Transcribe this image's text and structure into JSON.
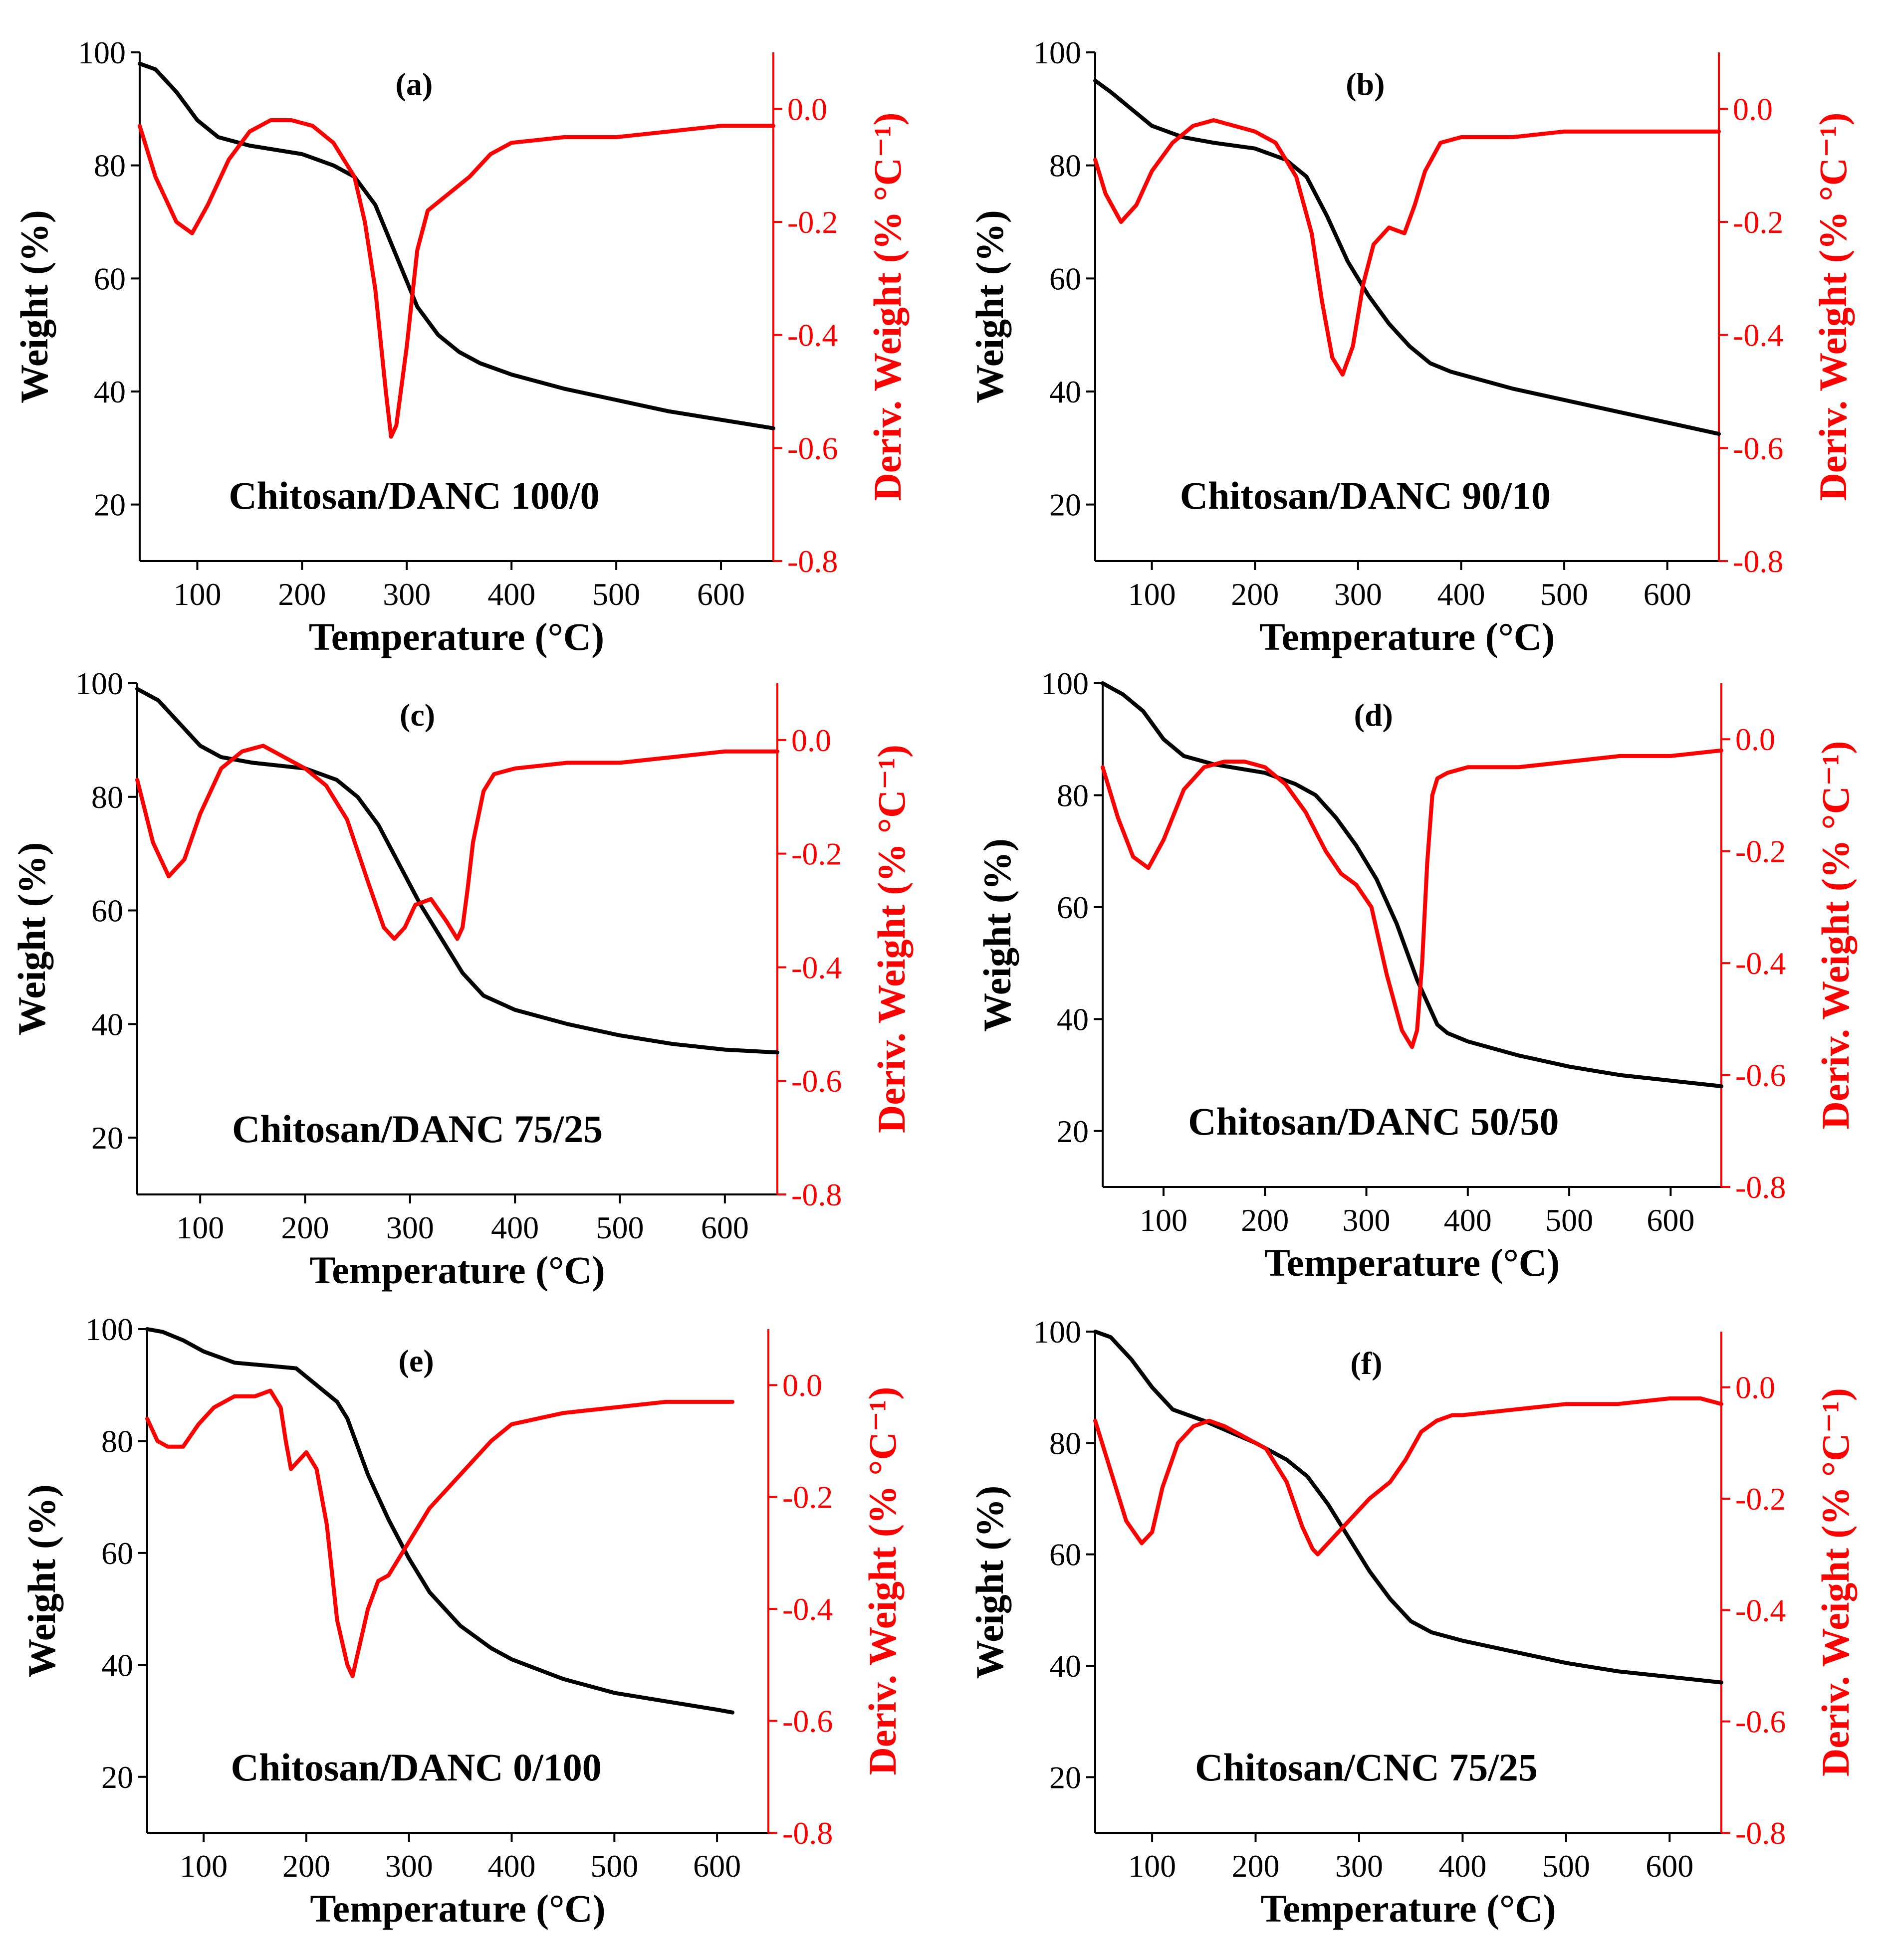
{
  "colors": {
    "weight": "#000000",
    "deriv": "#ff0000",
    "axis_left": "#000000",
    "axis_right": "#ff0000"
  },
  "chart_data": [
    {
      "type": "line",
      "panel": "(a)",
      "title": "Chitosan/DANC 100/0",
      "xlabel": "Temperature (°C)",
      "ylabel": "Weight (%)",
      "y2label": "Deriv. Weight (% °C⁻¹)",
      "xlim": [
        45,
        650
      ],
      "ylim": [
        10,
        100
      ],
      "y2lim": [
        -0.8,
        0.1
      ],
      "xticks": [
        100,
        200,
        300,
        400,
        500,
        600
      ],
      "yticks": [
        20,
        40,
        60,
        80,
        100
      ],
      "y2ticks": [
        0.0,
        -0.2,
        -0.4,
        -0.6,
        -0.8
      ],
      "series": [
        {
          "name": "Weight",
          "axis": "left",
          "x": [
            45,
            60,
            80,
            100,
            120,
            150,
            200,
            230,
            250,
            270,
            290,
            310,
            330,
            350,
            370,
            400,
            450,
            500,
            550,
            600,
            650
          ],
          "values": [
            98,
            97,
            93,
            88,
            85,
            83.5,
            82,
            80,
            78,
            73,
            64,
            55,
            50,
            47,
            45,
            43,
            40.5,
            38.5,
            36.5,
            35,
            33.5
          ]
        },
        {
          "name": "Deriv. Weight",
          "axis": "right",
          "x": [
            45,
            60,
            80,
            95,
            110,
            130,
            150,
            170,
            190,
            210,
            230,
            250,
            260,
            270,
            280,
            285,
            290,
            300,
            310,
            320,
            340,
            360,
            380,
            400,
            450,
            500,
            550,
            600,
            650
          ],
          "values": [
            -0.03,
            -0.12,
            -0.2,
            -0.22,
            -0.17,
            -0.09,
            -0.04,
            -0.02,
            -0.02,
            -0.03,
            -0.06,
            -0.12,
            -0.2,
            -0.32,
            -0.5,
            -0.58,
            -0.56,
            -0.42,
            -0.25,
            -0.18,
            -0.15,
            -0.12,
            -0.08,
            -0.06,
            -0.05,
            -0.05,
            -0.04,
            -0.03,
            -0.03
          ]
        }
      ]
    },
    {
      "type": "line",
      "panel": "(b)",
      "title": "Chitosan/DANC 90/10",
      "xlabel": "Temperature (°C)",
      "ylabel": "Weight (%)",
      "y2label": "Deriv. Weight (% °C⁻¹)",
      "xlim": [
        45,
        650
      ],
      "ylim": [
        10,
        100
      ],
      "y2lim": [
        -0.8,
        0.1
      ],
      "xticks": [
        100,
        200,
        300,
        400,
        500,
        600
      ],
      "yticks": [
        20,
        40,
        60,
        80,
        100
      ],
      "y2ticks": [
        0.0,
        -0.2,
        -0.4,
        -0.6,
        -0.8
      ],
      "series": [
        {
          "name": "Weight",
          "axis": "left",
          "x": [
            45,
            60,
            80,
            100,
            130,
            160,
            200,
            230,
            250,
            270,
            290,
            310,
            330,
            350,
            370,
            390,
            420,
            450,
            500,
            550,
            600,
            650
          ],
          "values": [
            95,
            93,
            90,
            87,
            85,
            84,
            83,
            81,
            78,
            71,
            63,
            57,
            52,
            48,
            45,
            43.5,
            42,
            40.5,
            38.5,
            36.5,
            34.5,
            32.5
          ]
        },
        {
          "name": "Deriv. Weight",
          "axis": "right",
          "x": [
            45,
            55,
            70,
            85,
            100,
            120,
            140,
            160,
            180,
            200,
            220,
            240,
            255,
            265,
            275,
            285,
            295,
            305,
            315,
            330,
            345,
            355,
            365,
            380,
            400,
            450,
            500,
            550,
            600,
            650
          ],
          "values": [
            -0.09,
            -0.15,
            -0.2,
            -0.17,
            -0.11,
            -0.06,
            -0.03,
            -0.02,
            -0.03,
            -0.04,
            -0.06,
            -0.12,
            -0.22,
            -0.34,
            -0.44,
            -0.47,
            -0.42,
            -0.31,
            -0.24,
            -0.21,
            -0.22,
            -0.17,
            -0.11,
            -0.06,
            -0.05,
            -0.05,
            -0.04,
            -0.04,
            -0.04,
            -0.04
          ]
        }
      ]
    },
    {
      "type": "line",
      "panel": "(c)",
      "title": "Chitosan/DANC 75/25",
      "xlabel": "Temperature (°C)",
      "ylabel": "Weight (%)",
      "y2label": "Deriv. Weight (% °C⁻¹)",
      "xlim": [
        40,
        650
      ],
      "ylim": [
        10,
        100
      ],
      "y2lim": [
        -0.8,
        0.1
      ],
      "xticks": [
        100,
        200,
        300,
        400,
        500,
        600
      ],
      "yticks": [
        20,
        40,
        60,
        80,
        100
      ],
      "y2ticks": [
        0.0,
        -0.2,
        -0.4,
        -0.6,
        -0.8
      ],
      "series": [
        {
          "name": "Weight",
          "axis": "left",
          "x": [
            40,
            60,
            80,
            100,
            120,
            150,
            200,
            230,
            250,
            270,
            290,
            310,
            330,
            350,
            370,
            400,
            450,
            500,
            550,
            600,
            650
          ],
          "values": [
            99,
            97,
            93,
            89,
            87,
            86,
            85,
            83,
            80,
            75,
            68,
            61,
            55,
            49,
            45,
            42.5,
            40,
            38,
            36.5,
            35.5,
            35
          ]
        },
        {
          "name": "Deriv. Weight",
          "axis": "right",
          "x": [
            40,
            55,
            70,
            85,
            100,
            120,
            140,
            160,
            180,
            200,
            220,
            240,
            260,
            275,
            285,
            295,
            305,
            320,
            335,
            345,
            350,
            355,
            360,
            370,
            380,
            400,
            450,
            500,
            550,
            600,
            650
          ],
          "values": [
            -0.07,
            -0.18,
            -0.24,
            -0.21,
            -0.13,
            -0.05,
            -0.02,
            -0.01,
            -0.03,
            -0.05,
            -0.08,
            -0.14,
            -0.25,
            -0.33,
            -0.35,
            -0.33,
            -0.29,
            -0.28,
            -0.32,
            -0.35,
            -0.33,
            -0.26,
            -0.18,
            -0.09,
            -0.06,
            -0.05,
            -0.04,
            -0.04,
            -0.03,
            -0.02,
            -0.02
          ]
        }
      ]
    },
    {
      "type": "line",
      "panel": "(d)",
      "title": "Chitosan/DANC 50/50",
      "xlabel": "Temperature (°C)",
      "ylabel": "Weight (%)",
      "y2label": "Deriv. Weight (% °C⁻¹)",
      "xlim": [
        40,
        650
      ],
      "ylim": [
        10,
        100
      ],
      "y2lim": [
        -0.8,
        0.1
      ],
      "xticks": [
        100,
        200,
        300,
        400,
        500,
        600
      ],
      "yticks": [
        20,
        40,
        60,
        80,
        100
      ],
      "y2ticks": [
        0.0,
        -0.2,
        -0.4,
        -0.6,
        -0.8
      ],
      "series": [
        {
          "name": "Weight",
          "axis": "left",
          "x": [
            40,
            60,
            80,
            100,
            120,
            150,
            200,
            230,
            250,
            270,
            290,
            310,
            330,
            350,
            370,
            380,
            400,
            450,
            500,
            550,
            600,
            650
          ],
          "values": [
            100,
            98,
            95,
            90,
            87,
            85.5,
            84,
            82,
            80,
            76,
            71,
            65,
            57,
            47,
            39,
            37.5,
            36,
            33.5,
            31.5,
            30,
            29,
            28
          ]
        },
        {
          "name": "Deriv. Weight",
          "axis": "right",
          "x": [
            40,
            55,
            70,
            85,
            100,
            120,
            140,
            160,
            180,
            200,
            220,
            240,
            260,
            275,
            290,
            305,
            320,
            335,
            345,
            350,
            355,
            360,
            365,
            370,
            380,
            400,
            450,
            500,
            550,
            600,
            650
          ],
          "values": [
            -0.05,
            -0.14,
            -0.21,
            -0.23,
            -0.18,
            -0.09,
            -0.05,
            -0.04,
            -0.04,
            -0.05,
            -0.08,
            -0.13,
            -0.2,
            -0.24,
            -0.26,
            -0.3,
            -0.42,
            -0.52,
            -0.55,
            -0.52,
            -0.4,
            -0.22,
            -0.1,
            -0.07,
            -0.06,
            -0.05,
            -0.05,
            -0.04,
            -0.03,
            -0.03,
            -0.02
          ]
        }
      ]
    },
    {
      "type": "line",
      "panel": "(e)",
      "title": "Chitosan/DANC 0/100",
      "xlabel": "Temperature (°C)",
      "ylabel": "Weight (%)",
      "y2label": "Deriv. Weight (% °C⁻¹)",
      "xlim": [
        45,
        650
      ],
      "ylim": [
        10,
        100
      ],
      "y2lim": [
        -0.8,
        0.1
      ],
      "xticks": [
        100,
        200,
        300,
        400,
        500,
        600
      ],
      "yticks": [
        20,
        40,
        60,
        80,
        100
      ],
      "y2ticks": [
        0.0,
        -0.2,
        -0.4,
        -0.6,
        -0.8
      ],
      "series": [
        {
          "name": "Weight",
          "axis": "left",
          "x": [
            45,
            60,
            80,
            100,
            130,
            160,
            190,
            210,
            230,
            240,
            250,
            260,
            280,
            300,
            320,
            350,
            380,
            400,
            450,
            500,
            550,
            600,
            615
          ],
          "values": [
            100,
            99.5,
            98,
            96,
            94,
            93.5,
            93,
            90,
            87,
            84,
            79,
            74,
            66,
            59,
            53,
            47,
            43,
            41,
            37.5,
            35,
            33.5,
            32,
            31.5
          ]
        },
        {
          "name": "Deriv. Weight",
          "axis": "right",
          "x": [
            45,
            55,
            65,
            80,
            95,
            110,
            130,
            150,
            165,
            175,
            180,
            185,
            190,
            200,
            210,
            220,
            230,
            240,
            245,
            250,
            260,
            270,
            280,
            290,
            300,
            320,
            340,
            360,
            380,
            400,
            450,
            500,
            550,
            600,
            615
          ],
          "values": [
            -0.06,
            -0.1,
            -0.11,
            -0.11,
            -0.07,
            -0.04,
            -0.02,
            -0.02,
            -0.01,
            -0.04,
            -0.1,
            -0.15,
            -0.14,
            -0.12,
            -0.15,
            -0.25,
            -0.42,
            -0.5,
            -0.52,
            -0.48,
            -0.4,
            -0.35,
            -0.34,
            -0.31,
            -0.28,
            -0.22,
            -0.18,
            -0.14,
            -0.1,
            -0.07,
            -0.05,
            -0.04,
            -0.03,
            -0.03,
            -0.03
          ]
        }
      ]
    },
    {
      "type": "line",
      "panel": "(f)",
      "title": "Chitosan/CNC 75/25",
      "xlabel": "Temperature (°C)",
      "ylabel": "Weight (%)",
      "y2label": "Deriv. Weight (% °C⁻¹)",
      "xlim": [
        45,
        650
      ],
      "ylim": [
        10,
        100
      ],
      "y2lim": [
        -0.8,
        0.1
      ],
      "xticks": [
        100,
        200,
        300,
        400,
        500,
        600
      ],
      "yticks": [
        20,
        40,
        60,
        80,
        100
      ],
      "y2ticks": [
        0.0,
        -0.2,
        -0.4,
        -0.6,
        -0.8
      ],
      "series": [
        {
          "name": "Weight",
          "axis": "left",
          "x": [
            45,
            60,
            80,
            100,
            120,
            150,
            200,
            230,
            250,
            270,
            290,
            310,
            330,
            350,
            370,
            400,
            450,
            500,
            550,
            600,
            650
          ],
          "values": [
            100,
            99,
            95,
            90,
            86,
            84,
            80,
            77,
            74,
            69,
            63,
            57,
            52,
            48,
            46,
            44.5,
            42.5,
            40.5,
            39,
            38,
            37
          ]
        },
        {
          "name": "Deriv. Weight",
          "axis": "right",
          "x": [
            45,
            60,
            75,
            90,
            100,
            110,
            125,
            140,
            155,
            170,
            190,
            210,
            230,
            245,
            255,
            260,
            265,
            275,
            290,
            310,
            330,
            345,
            360,
            375,
            390,
            400,
            450,
            500,
            550,
            600,
            630,
            650
          ],
          "values": [
            -0.06,
            -0.15,
            -0.24,
            -0.28,
            -0.26,
            -0.18,
            -0.1,
            -0.07,
            -0.06,
            -0.07,
            -0.09,
            -0.11,
            -0.17,
            -0.25,
            -0.29,
            -0.3,
            -0.29,
            -0.27,
            -0.24,
            -0.2,
            -0.17,
            -0.13,
            -0.08,
            -0.06,
            -0.05,
            -0.05,
            -0.04,
            -0.03,
            -0.03,
            -0.02,
            -0.02,
            -0.03
          ]
        }
      ]
    }
  ]
}
